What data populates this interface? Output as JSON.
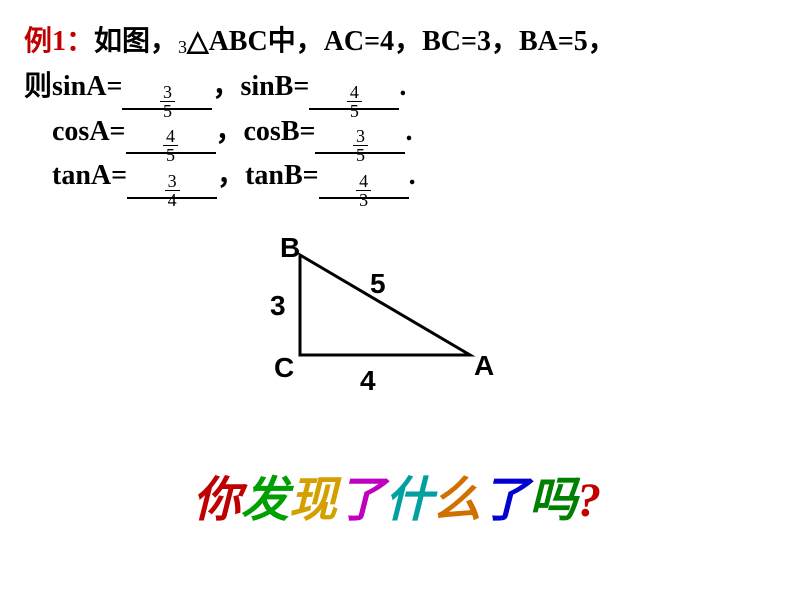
{
  "problem": {
    "label": "例1：",
    "text1_a": "如图，",
    "text1_b": "ABC中，AC=4，BC=3，BA=5，",
    "triangle_symbol": "△",
    "inline_small": "3",
    "line2_a": "则sinA=",
    "line2_b": "，sinB=",
    "line2_c": ".",
    "line3_a": "cosA=",
    "line3_b": "，cosB=",
    "line3_c": ".",
    "line4_a": "tanA=",
    "line4_b": "，tanB=",
    "line4_c": ".",
    "sinA": {
      "num": "3",
      "den": "5"
    },
    "sinB": {
      "num": "4",
      "den": "5"
    },
    "cosA": {
      "num": "4",
      "den": "5"
    },
    "cosB": {
      "num": "3",
      "den": "5"
    },
    "tanA": {
      "num": "3",
      "den": "4"
    },
    "tanB": {
      "num": "4",
      "den": "3"
    }
  },
  "figure": {
    "B": "B",
    "C": "C",
    "A": "A",
    "side_a": "5",
    "side_b": "3",
    "side_c": "4",
    "stroke": "#000000",
    "stroke_width": 3
  },
  "rainbow": {
    "chars": [
      {
        "t": "你",
        "c": "#c00000"
      },
      {
        "t": "发",
        "c": "#00a000"
      },
      {
        "t": "现",
        "c": "#d4a000"
      },
      {
        "t": "了",
        "c": "#c000c0"
      },
      {
        "t": "什",
        "c": "#00a0a0"
      },
      {
        "t": "么",
        "c": "#d07000"
      },
      {
        "t": "了",
        "c": "#0000d0"
      },
      {
        "t": "吗",
        "c": "#008000"
      },
      {
        "t": "?",
        "c": "#c00000"
      }
    ]
  }
}
